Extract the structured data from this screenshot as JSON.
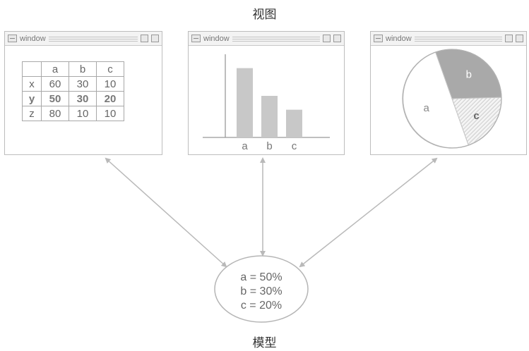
{
  "captions": {
    "top": "视图",
    "bottom": "模型"
  },
  "windows": [
    {
      "title": "window"
    },
    {
      "title": "window"
    },
    {
      "title": "window"
    }
  ],
  "table": {
    "header": [
      "",
      "a",
      "b",
      "c"
    ],
    "rows": [
      [
        "x",
        "60",
        "30",
        "10"
      ],
      [
        "y",
        "50",
        "30",
        "20"
      ],
      [
        "z",
        "80",
        "10",
        "10"
      ]
    ]
  },
  "chart_data": [
    {
      "type": "bar",
      "categories": [
        "a",
        "b",
        "c"
      ],
      "values": [
        50,
        30,
        20
      ],
      "ylim": [
        0,
        60
      ]
    },
    {
      "type": "pie",
      "categories": [
        "a",
        "b",
        "c"
      ],
      "values": [
        50,
        30,
        20
      ]
    }
  ],
  "model": {
    "lines": [
      "a = 50%",
      "b = 30%",
      "c = 20%"
    ]
  },
  "colors": {
    "bar": "#c8c8c8",
    "pie_b": "#a9a9a9",
    "pie_c": "#e9e9e9",
    "arrow": "#b9b9b9"
  }
}
